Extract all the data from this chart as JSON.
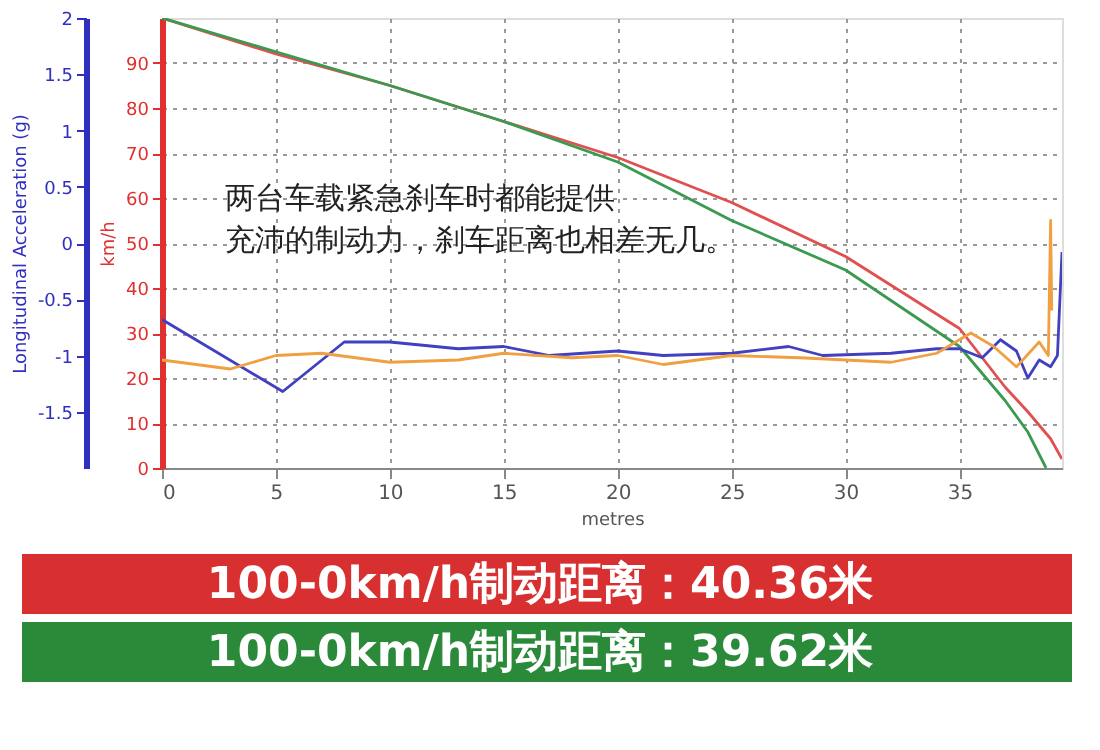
{
  "chart_data": {
    "type": "line",
    "xlabel": "metres",
    "ylabel": "km/h",
    "y2label": "Longitudinal Acceleration (g)",
    "xlim": [
      0,
      39.5
    ],
    "xticks": [
      0,
      5,
      10,
      15,
      20,
      25,
      30,
      35
    ],
    "ylim": [
      0,
      100
    ],
    "yticks": [
      0,
      10,
      20,
      30,
      40,
      50,
      60,
      70,
      80,
      90
    ],
    "y2lim": [
      -2,
      2
    ],
    "y2ticks": [
      -1.5,
      -1,
      -0.5,
      0,
      0.5,
      1,
      1.5,
      2
    ],
    "grid": true,
    "line_style": "solid",
    "marker": "none",
    "series": [
      {
        "color": "#e05050",
        "x": [
          0,
          5,
          10,
          15,
          20,
          25,
          30,
          35,
          37,
          38,
          39,
          39.5
        ],
        "values": [
          100,
          92,
          85,
          77,
          69,
          59,
          47,
          31,
          18,
          12.5,
          6.5,
          2
        ]
      },
      {
        "color": "#3a9a50",
        "x": [
          0,
          5,
          10,
          15,
          20,
          25,
          30,
          35,
          37,
          38,
          38.8
        ],
        "values": [
          100,
          92.5,
          85,
          77,
          68,
          55,
          44,
          27,
          15,
          8,
          0
        ]
      },
      {
        "color": "#4040c0",
        "axis": "y2",
        "x": [
          0,
          5.3,
          8,
          10,
          13,
          15,
          17,
          20,
          22,
          25,
          27.5,
          29,
          32,
          34,
          35,
          36,
          36.8,
          37.5,
          38,
          38.5,
          39,
          39.3,
          39.5
        ],
        "values": [
          -0.68,
          -1.32,
          -0.88,
          -0.88,
          -0.94,
          -0.92,
          -1.0,
          -0.96,
          -1.0,
          -0.98,
          -0.92,
          -1.0,
          -0.98,
          -0.94,
          -0.94,
          -1.02,
          -0.86,
          -0.96,
          -1.2,
          -1.04,
          -1.1,
          -1.0,
          -0.08
        ]
      },
      {
        "color": "#f0a040",
        "axis": "y2",
        "x": [
          0,
          1.5,
          3,
          5,
          7,
          10,
          13,
          15,
          18,
          20,
          22,
          25,
          28,
          30,
          32,
          34,
          35.5,
          36.5,
          37.5,
          38.5,
          38.9,
          39.0,
          39.05
        ],
        "values": [
          -1.04,
          -1.08,
          -1.12,
          -1.0,
          -0.98,
          -1.06,
          -1.04,
          -0.98,
          -1.02,
          -1.0,
          -1.08,
          -1.0,
          -1.02,
          -1.04,
          -1.06,
          -0.98,
          -0.8,
          -0.92,
          -1.1,
          -0.88,
          -1.0,
          0.2,
          -0.6
        ]
      }
    ],
    "annotations": [
      "两台车载紧急刹车时都能提供",
      "充沛的制动力，刹车距离也相差无几。",
      "100-0km/h制动距离：40.36米",
      "100-0km/h制动距离：39.62米"
    ]
  }
}
